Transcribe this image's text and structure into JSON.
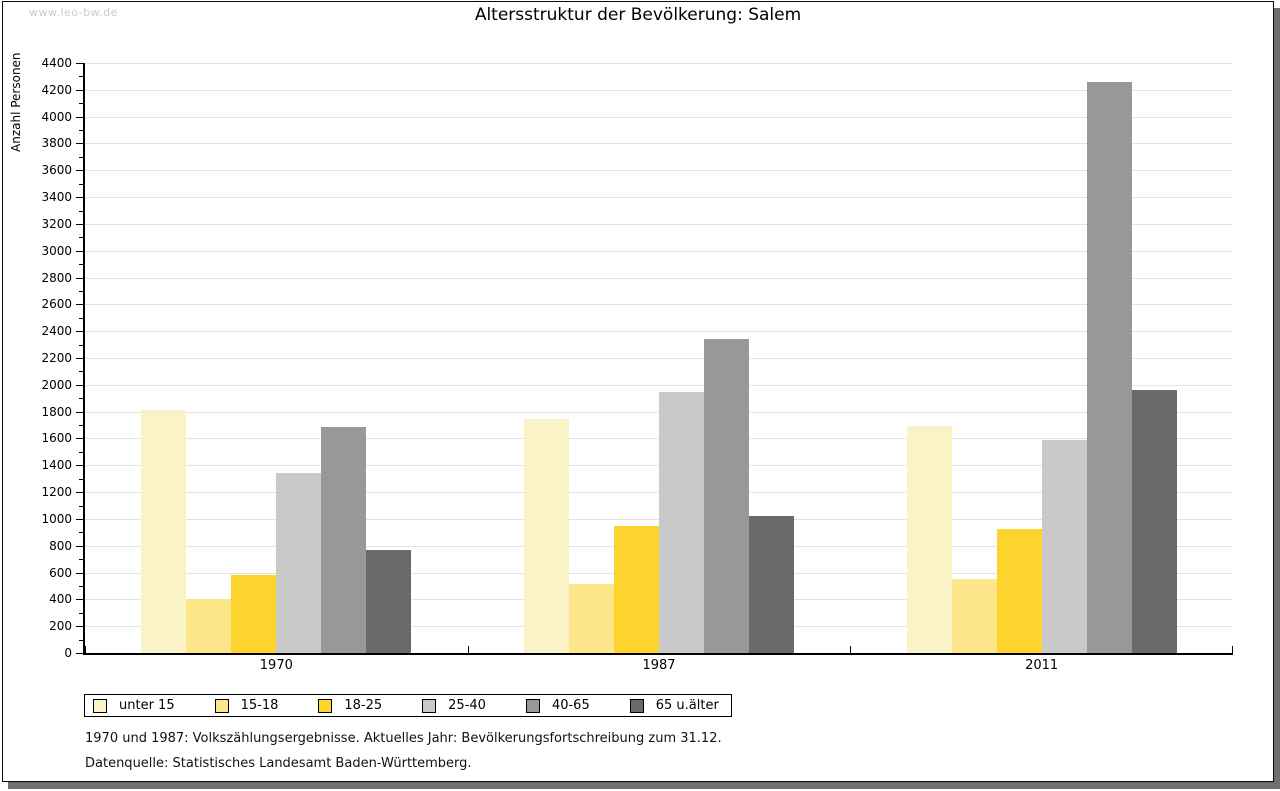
{
  "page": {
    "watermark": "www.leo-bw.de",
    "title": "Altersstruktur der Bevölkerung: Salem",
    "footnote1": "1970 und 1987: Volkszählungsergebnisse. Aktuelles Jahr: Bevölkerungsfortschreibung zum 31.12.",
    "footnote2": "Datenquelle: Statistisches Landesamt Baden-Württemberg."
  },
  "chart_data": {
    "type": "bar",
    "title": "Altersstruktur der Bevölkerung: Salem",
    "ylabel": "Anzahl Personen",
    "xlabel": "",
    "ylim": [
      0,
      4400
    ],
    "ytick_step": 200,
    "yminor_step": 100,
    "grid": "horizontal",
    "legend_position": "bottom-left",
    "categories": [
      "1970",
      "1987",
      "2011"
    ],
    "series": [
      {
        "name": "unter 15",
        "color": "#faf3c6",
        "values": [
          1810,
          1745,
          1690
        ]
      },
      {
        "name": "15-18",
        "color": "#fde68a",
        "values": [
          400,
          515,
          550
        ]
      },
      {
        "name": "18-25",
        "color": "#fcd42d",
        "values": [
          585,
          950,
          925
        ]
      },
      {
        "name": "25-40",
        "color": "#c9c9c9",
        "values": [
          1340,
          1950,
          1590
        ]
      },
      {
        "name": "40-65",
        "color": "#989898",
        "values": [
          1685,
          2345,
          4260
        ]
      },
      {
        "name": "65 u.älter",
        "color": "#6a6a6a",
        "values": [
          770,
          1025,
          1965
        ]
      }
    ]
  },
  "colors": {
    "gridline": "#e3e3e3",
    "axis": "#000000",
    "watermark": "#cbcbcb",
    "frame_shadow": "#6e6e6e"
  }
}
